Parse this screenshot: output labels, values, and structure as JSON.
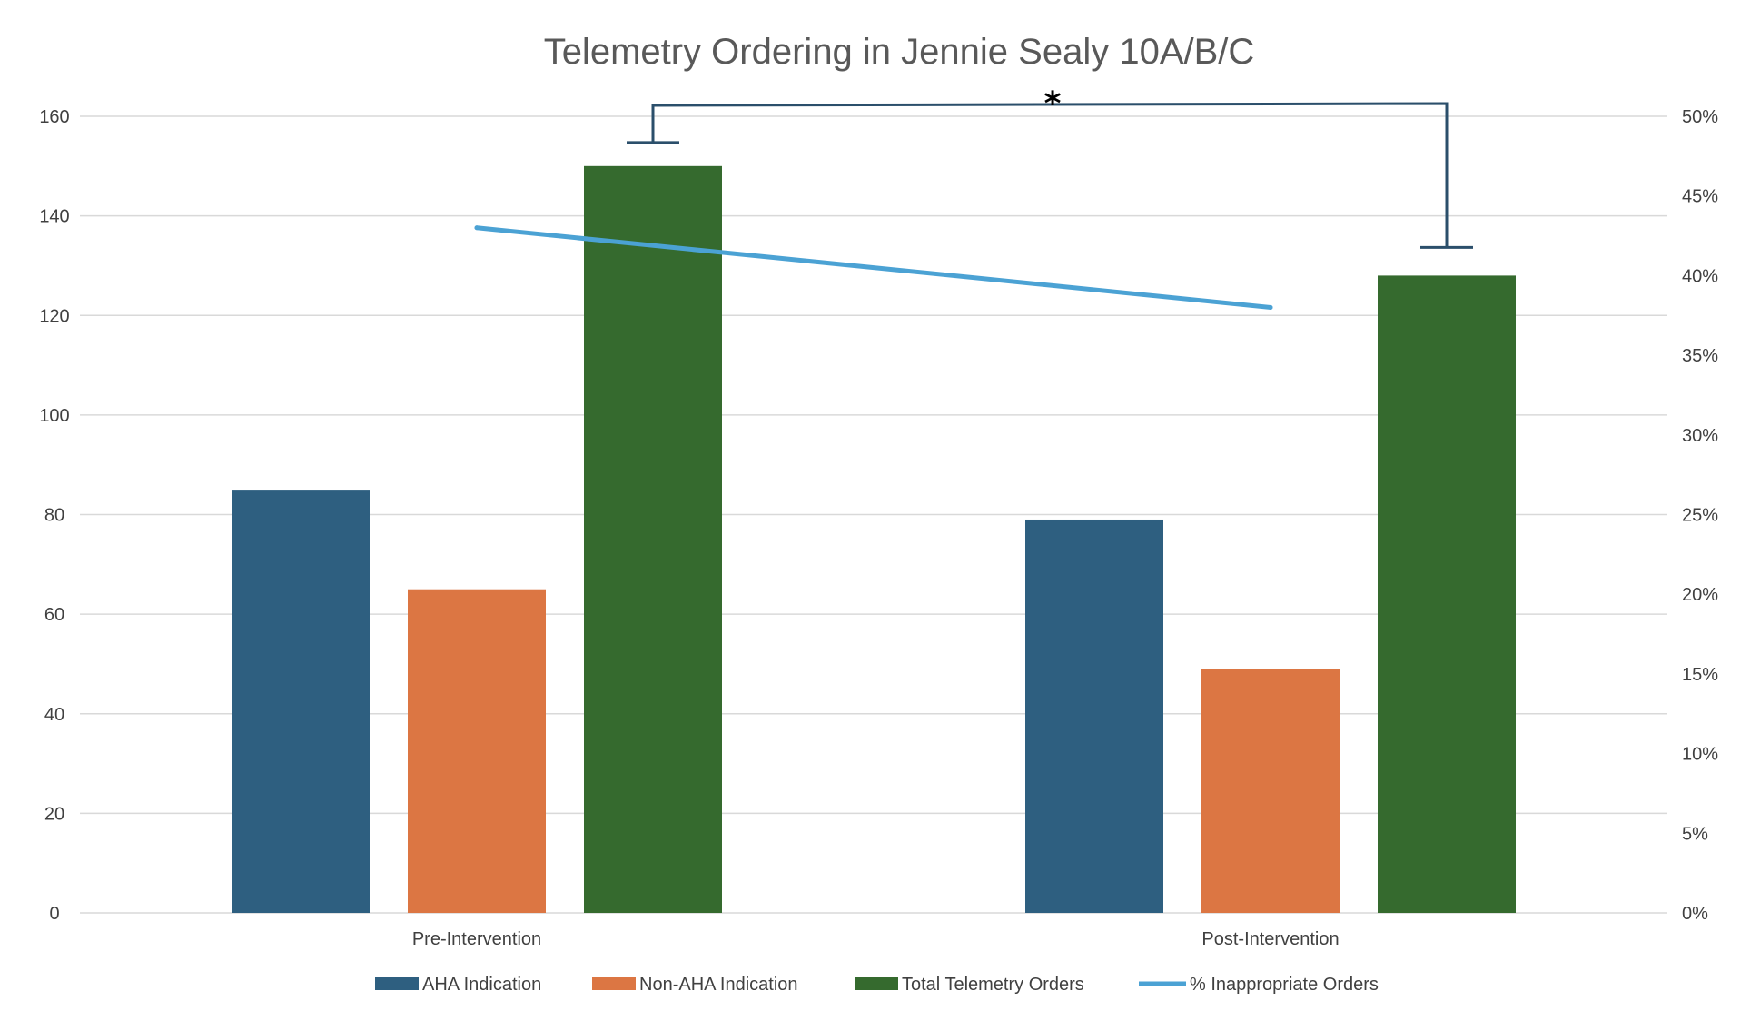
{
  "chart_data": {
    "type": "bar",
    "title": "Telemetry Ordering in Jennie Sealy 10A/B/C",
    "categories": [
      "Pre-Intervention",
      "Post-Intervention"
    ],
    "series": [
      {
        "name": "AHA Indication",
        "type": "bar",
        "axis": "primary",
        "color": "#2E5F80",
        "values": [
          85,
          79
        ]
      },
      {
        "name": "Non-AHA Indication",
        "type": "bar",
        "axis": "primary",
        "color": "#DC7643",
        "values": [
          65,
          49
        ]
      },
      {
        "name": "Total Telemetry Orders",
        "type": "bar",
        "axis": "primary",
        "color": "#356A2E",
        "values": [
          150,
          128
        ]
      },
      {
        "name": "% Inappropriate Orders",
        "type": "line",
        "axis": "secondary",
        "color": "#4BA2D4",
        "values": [
          0.43,
          0.38
        ]
      }
    ],
    "ylim": [
      0,
      160
    ],
    "yticks": [
      "0",
      "20",
      "40",
      "60",
      "80",
      "100",
      "120",
      "140",
      "160"
    ],
    "y2lim": [
      0,
      0.5
    ],
    "y2ticks": [
      "0%",
      "5%",
      "10%",
      "15%",
      "20%",
      "25%",
      "30%",
      "35%",
      "40%",
      "45%",
      "50%"
    ],
    "grid": true,
    "legend_position": "bottom",
    "annotation": {
      "text": "*",
      "type": "significance-bracket",
      "between": [
        "Pre-Intervention: Total Telemetry Orders",
        "Post-Intervention: Total Telemetry Orders"
      ],
      "color": "#2B4F6B"
    }
  }
}
